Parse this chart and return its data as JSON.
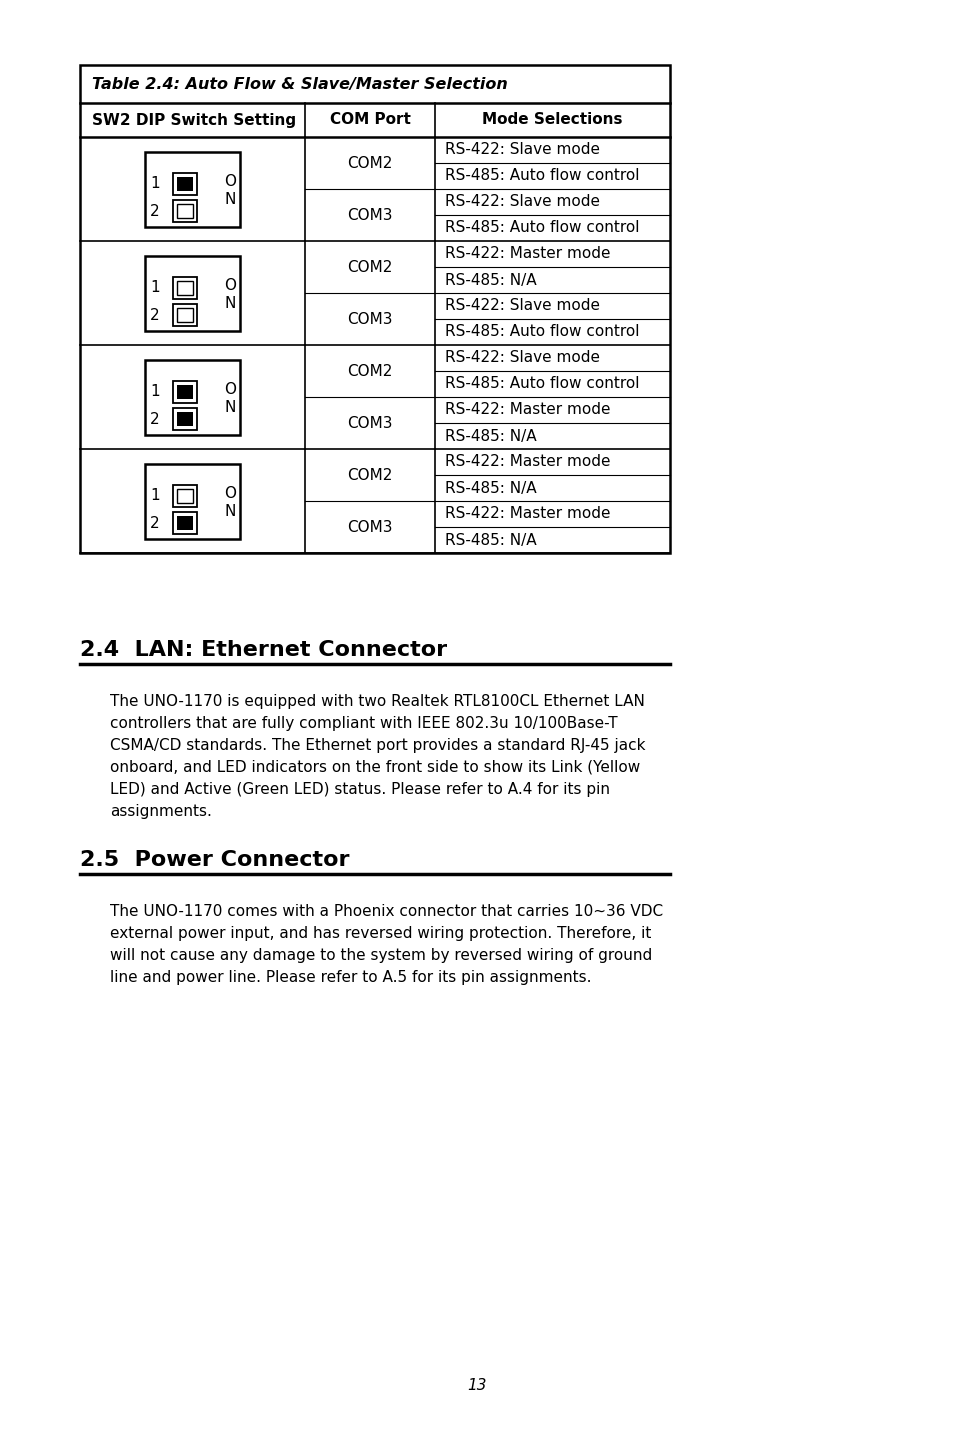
{
  "title": "Table 2.4: Auto Flow & Slave/Master Selection",
  "col_headers": [
    "SW2 DIP Switch Setting",
    "COM Port",
    "Mode Selections"
  ],
  "rows": [
    {
      "switch_state": [
        true,
        false
      ],
      "com_ports": [
        {
          "port": "COM2",
          "modes": [
            "RS-422: Slave mode",
            "RS-485: Auto flow control"
          ]
        },
        {
          "port": "COM3",
          "modes": [
            "RS-422: Slave mode",
            "RS-485: Auto flow control"
          ]
        }
      ]
    },
    {
      "switch_state": [
        false,
        false
      ],
      "com_ports": [
        {
          "port": "COM2",
          "modes": [
            "RS-422: Master mode",
            "RS-485: N/A"
          ]
        },
        {
          "port": "COM3",
          "modes": [
            "RS-422: Slave mode",
            "RS-485: Auto flow control"
          ]
        }
      ]
    },
    {
      "switch_state": [
        true,
        true
      ],
      "com_ports": [
        {
          "port": "COM2",
          "modes": [
            "RS-422: Slave mode",
            "RS-485: Auto flow control"
          ]
        },
        {
          "port": "COM3",
          "modes": [
            "RS-422: Master mode",
            "RS-485: N/A"
          ]
        }
      ]
    },
    {
      "switch_state": [
        false,
        true
      ],
      "com_ports": [
        {
          "port": "COM2",
          "modes": [
            "RS-422: Master mode",
            "RS-485: N/A"
          ]
        },
        {
          "port": "COM3",
          "modes": [
            "RS-422: Master mode",
            "RS-485: N/A"
          ]
        }
      ]
    }
  ],
  "section_24_title": "2.4  LAN: Ethernet Connector",
  "section_24_text": "The UNO-1170 is equipped with two Realtek RTL8100CL Ethernet LAN\ncontrollers that are fully compliant with IEEE 802.3u 10/100Base-T\nCSMA/CD standards. The Ethernet port provides a standard RJ-45 jack\nonboard, and LED indicators on the front side to show its Link (Yellow\nLED) and Active (Green LED) status. Please refer to A.4 for its pin\nassignments.",
  "section_25_title": "2.5  Power Connector",
  "section_25_text": "The UNO-1170 comes with a Phoenix connector that carries 10~36 VDC\nexternal power input, and has reversed wiring protection. Therefore, it\nwill not cause any damage to the system by reversed wiring of ground\nline and power line. Please refer to A.5 for its pin assignments.",
  "page_number": "13",
  "bg_color": "#ffffff"
}
